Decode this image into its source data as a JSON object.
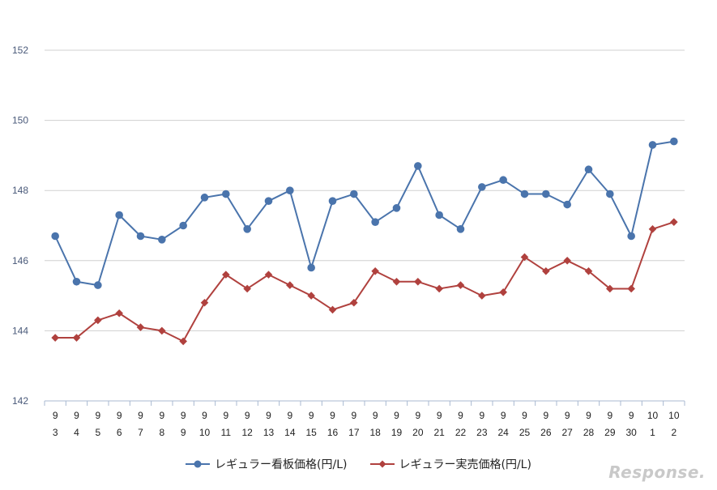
{
  "chart_data": {
    "type": "line",
    "ylim": [
      142,
      152
    ],
    "yticks": [
      142,
      144,
      146,
      148,
      150,
      152
    ],
    "categories": [
      [
        "9",
        "3"
      ],
      [
        "9",
        "4"
      ],
      [
        "9",
        "5"
      ],
      [
        "9",
        "6"
      ],
      [
        "9",
        "7"
      ],
      [
        "9",
        "8"
      ],
      [
        "9",
        "9"
      ],
      [
        "9",
        "10"
      ],
      [
        "9",
        "11"
      ],
      [
        "9",
        "12"
      ],
      [
        "9",
        "13"
      ],
      [
        "9",
        "14"
      ],
      [
        "9",
        "15"
      ],
      [
        "9",
        "16"
      ],
      [
        "9",
        "17"
      ],
      [
        "9",
        "18"
      ],
      [
        "9",
        "19"
      ],
      [
        "9",
        "20"
      ],
      [
        "9",
        "21"
      ],
      [
        "9",
        "22"
      ],
      [
        "9",
        "23"
      ],
      [
        "9",
        "24"
      ],
      [
        "9",
        "25"
      ],
      [
        "9",
        "26"
      ],
      [
        "9",
        "27"
      ],
      [
        "9",
        "28"
      ],
      [
        "9",
        "29"
      ],
      [
        "9",
        "30"
      ],
      [
        "10",
        "1"
      ],
      [
        "10",
        "2"
      ]
    ],
    "series": [
      {
        "name": "レギュラー看板価格(円/L)",
        "color": "#4a74ac",
        "marker": "circle",
        "values": [
          146.7,
          145.4,
          145.3,
          147.3,
          146.7,
          146.6,
          147.0,
          147.8,
          147.9,
          146.9,
          147.7,
          148.0,
          145.8,
          147.7,
          147.9,
          147.1,
          147.5,
          148.7,
          147.3,
          146.9,
          148.1,
          148.3,
          147.9,
          147.9,
          147.6,
          148.6,
          147.9,
          146.7,
          149.3,
          149.4
        ]
      },
      {
        "name": "レギュラー実売価格(円/L)",
        "color": "#b0413e",
        "marker": "diamond",
        "values": [
          143.8,
          143.8,
          144.3,
          144.5,
          144.1,
          144.0,
          143.7,
          144.8,
          145.6,
          145.2,
          145.6,
          145.3,
          145.0,
          144.6,
          144.8,
          145.7,
          145.4,
          145.4,
          145.2,
          145.3,
          145.0,
          145.1,
          146.1,
          145.7,
          146.0,
          145.7,
          145.2,
          145.2,
          146.9,
          147.1
        ]
      }
    ]
  },
  "watermark": "Response."
}
